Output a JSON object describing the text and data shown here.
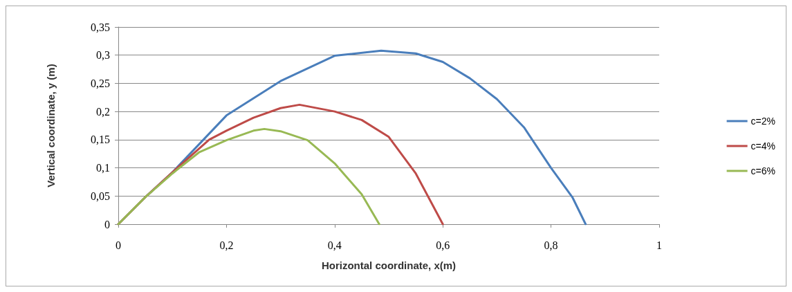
{
  "chart_data": {
    "type": "line",
    "xlabel": "Horizontal coordinate, x(m)",
    "ylabel": "Vertical coordinate, y (m)",
    "xlim": [
      0,
      1
    ],
    "xticks": [
      0,
      {
        "value": 0.2,
        "label": "0,2"
      },
      {
        "value": 0.4,
        "label": "0,4"
      },
      {
        "value": 0.6,
        "label": "0,6"
      },
      {
        "value": 0.8,
        "label": "0,8"
      },
      1
    ],
    "ylim": [
      0,
      0.35
    ],
    "yticks": [
      0,
      {
        "value": 0.05,
        "label": "0,05"
      },
      {
        "value": 0.1,
        "label": "0,1"
      },
      {
        "value": 0.15,
        "label": "0,15"
      },
      {
        "value": 0.2,
        "label": "0,2"
      },
      {
        "value": 0.25,
        "label": "0,25"
      },
      {
        "value": 0.3,
        "label": "0,3"
      },
      {
        "value": 0.35,
        "label": "0,35"
      }
    ],
    "grid": "y",
    "legend": "right",
    "marker": "none",
    "line_style": "solid",
    "series": [
      {
        "name": "c=2%",
        "color": "#4a7ebb",
        "x": [
          0,
          0.05,
          0.1,
          0.2,
          0.3,
          0.4,
          0.486,
          0.55,
          0.6,
          0.65,
          0.7,
          0.75,
          0.8,
          0.84,
          0.864
        ],
        "values": [
          0,
          0.048,
          0.092,
          0.193,
          0.254,
          0.299,
          0.308,
          0.303,
          0.288,
          0.259,
          0.222,
          0.172,
          0.1,
          0.047,
          0
        ]
      },
      {
        "name": "c=4%",
        "color": "#be4b48",
        "x": [
          0,
          0.05,
          0.1,
          0.168,
          0.2,
          0.25,
          0.3,
          0.335,
          0.4,
          0.45,
          0.5,
          0.55,
          0.6
        ],
        "values": [
          0,
          0.048,
          0.092,
          0.15,
          0.166,
          0.189,
          0.206,
          0.212,
          0.2,
          0.185,
          0.155,
          0.09,
          0
        ]
      },
      {
        "name": "c=6%",
        "color": "#98b954",
        "x": [
          0,
          0.05,
          0.1,
          0.15,
          0.2,
          0.25,
          0.27,
          0.3,
          0.35,
          0.4,
          0.45,
          0.4825
        ],
        "values": [
          0,
          0.048,
          0.09,
          0.128,
          0.149,
          0.166,
          0.169,
          0.165,
          0.149,
          0.108,
          0.053,
          0
        ]
      }
    ]
  }
}
